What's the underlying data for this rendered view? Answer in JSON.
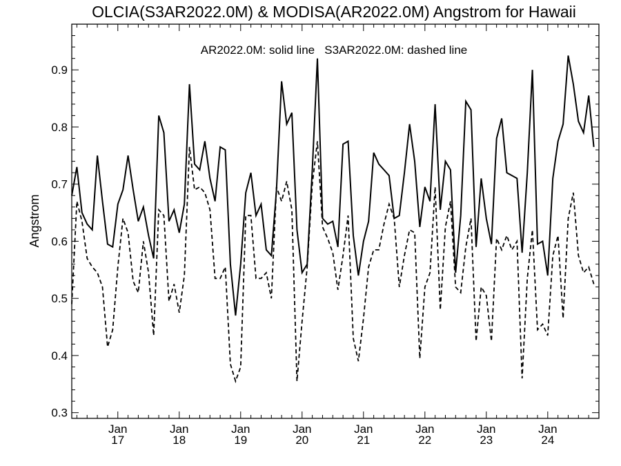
{
  "chart_data": {
    "type": "line",
    "title": "OLCIA(S3AR2022.0M) & MODISA(AR2022.0M)  Angstrom for Hawaii",
    "annotation": "AR2022.0M: solid line   S3AR2022.0M: dashed line",
    "ylabel": "Angstrom",
    "xlabel": "",
    "ylim": [
      0.29,
      0.98
    ],
    "xlim": [
      "2016-04",
      "2024-11"
    ],
    "y_ticks": [
      0.3,
      0.4,
      0.5,
      0.6,
      0.7,
      0.8,
      0.9
    ],
    "y_tick_labels": [
      "0.3",
      "0.4",
      "0.5",
      "0.6",
      "0.7",
      "0.8",
      "0.9"
    ],
    "x_ticks": [
      {
        "month": "Jan",
        "year": "17",
        "date": "2017-01"
      },
      {
        "month": "Jan",
        "year": "18",
        "date": "2018-01"
      },
      {
        "month": "Jan",
        "year": "19",
        "date": "2019-01"
      },
      {
        "month": "Jan",
        "year": "20",
        "date": "2020-01"
      },
      {
        "month": "Jan",
        "year": "21",
        "date": "2021-01"
      },
      {
        "month": "Jan",
        "year": "22",
        "date": "2022-01"
      },
      {
        "month": "Jan",
        "year": "23",
        "date": "2023-01"
      },
      {
        "month": "Jan",
        "year": "24",
        "date": "2024-01"
      }
    ],
    "grid": false,
    "series": [
      {
        "name": "AR2022.0M",
        "style": "solid",
        "color": "#000000",
        "points": [
          [
            "2016-04",
            0.68
          ],
          [
            "2016-05",
            0.73
          ],
          [
            "2016-06",
            0.65
          ],
          [
            "2016-07",
            0.63
          ],
          [
            "2016-08",
            0.62
          ],
          [
            "2016-09",
            0.75
          ],
          [
            "2016-10",
            0.67
          ],
          [
            "2016-11",
            0.595
          ],
          [
            "2016-12",
            0.59
          ],
          [
            "2017-01",
            0.665
          ],
          [
            "2017-02",
            0.69
          ],
          [
            "2017-03",
            0.75
          ],
          [
            "2017-04",
            0.69
          ],
          [
            "2017-05",
            0.635
          ],
          [
            "2017-06",
            0.66
          ],
          [
            "2017-07",
            0.61
          ],
          [
            "2017-08",
            0.57
          ],
          [
            "2017-09",
            0.82
          ],
          [
            "2017-10",
            0.79
          ],
          [
            "2017-11",
            0.635
          ],
          [
            "2017-12",
            0.655
          ],
          [
            "2018-01",
            0.615
          ],
          [
            "2018-02",
            0.665
          ],
          [
            "2018-03",
            0.875
          ],
          [
            "2018-04",
            0.735
          ],
          [
            "2018-05",
            0.725
          ],
          [
            "2018-06",
            0.775
          ],
          [
            "2018-07",
            0.71
          ],
          [
            "2018-08",
            0.67
          ],
          [
            "2018-09",
            0.765
          ],
          [
            "2018-10",
            0.76
          ],
          [
            "2018-11",
            0.56
          ],
          [
            "2018-12",
            0.47
          ],
          [
            "2019-01",
            0.56
          ],
          [
            "2019-02",
            0.685
          ],
          [
            "2019-03",
            0.72
          ],
          [
            "2019-04",
            0.645
          ],
          [
            "2019-05",
            0.665
          ],
          [
            "2019-06",
            0.585
          ],
          [
            "2019-07",
            0.575
          ],
          [
            "2019-08",
            0.69
          ],
          [
            "2019-09",
            0.88
          ],
          [
            "2019-10",
            0.805
          ],
          [
            "2019-11",
            0.825
          ],
          [
            "2019-12",
            0.62
          ],
          [
            "2020-01",
            0.545
          ],
          [
            "2020-02",
            0.56
          ],
          [
            "2020-03",
            0.725
          ],
          [
            "2020-04",
            0.92
          ],
          [
            "2020-05",
            0.64
          ],
          [
            "2020-06",
            0.63
          ],
          [
            "2020-07",
            0.635
          ],
          [
            "2020-08",
            0.59
          ],
          [
            "2020-09",
            0.77
          ],
          [
            "2020-10",
            0.775
          ],
          [
            "2020-11",
            0.61
          ],
          [
            "2020-12",
            0.54
          ],
          [
            "2021-01",
            0.6
          ],
          [
            "2021-02",
            0.635
          ],
          [
            "2021-03",
            0.755
          ],
          [
            "2021-04",
            0.735
          ],
          [
            "2021-05",
            0.725
          ],
          [
            "2021-06",
            0.715
          ],
          [
            "2021-07",
            0.64
          ],
          [
            "2021-08",
            0.645
          ],
          [
            "2021-09",
            0.72
          ],
          [
            "2021-10",
            0.805
          ],
          [
            "2021-11",
            0.74
          ],
          [
            "2021-12",
            0.625
          ],
          [
            "2022-01",
            0.695
          ],
          [
            "2022-02",
            0.67
          ],
          [
            "2022-03",
            0.84
          ],
          [
            "2022-04",
            0.655
          ],
          [
            "2022-05",
            0.74
          ],
          [
            "2022-06",
            0.725
          ],
          [
            "2022-07",
            0.545
          ],
          [
            "2022-08",
            0.645
          ],
          [
            "2022-09",
            0.845
          ],
          [
            "2022-10",
            0.83
          ],
          [
            "2022-11",
            0.59
          ],
          [
            "2022-12",
            0.71
          ],
          [
            "2023-01",
            0.64
          ],
          [
            "2023-02",
            0.595
          ],
          [
            "2023-03",
            0.78
          ],
          [
            "2023-04",
            0.815
          ],
          [
            "2023-05",
            0.72
          ],
          [
            "2023-06",
            0.715
          ],
          [
            "2023-07",
            0.71
          ],
          [
            "2023-08",
            0.58
          ],
          [
            "2023-09",
            0.72
          ],
          [
            "2023-10",
            0.9
          ],
          [
            "2023-11",
            0.595
          ],
          [
            "2023-12",
            0.6
          ],
          [
            "2024-01",
            0.54
          ],
          [
            "2024-02",
            0.71
          ],
          [
            "2024-03",
            0.775
          ],
          [
            "2024-04",
            0.805
          ],
          [
            "2024-05",
            0.925
          ],
          [
            "2024-06",
            0.875
          ],
          [
            "2024-07",
            0.81
          ],
          [
            "2024-08",
            0.79
          ],
          [
            "2024-09",
            0.855
          ],
          [
            "2024-10",
            0.765
          ]
        ]
      },
      {
        "name": "S3AR2022.0M",
        "style": "dashed",
        "color": "#000000",
        "points": [
          [
            "2016-04",
            0.49
          ],
          [
            "2016-05",
            0.67
          ],
          [
            "2016-06",
            0.635
          ],
          [
            "2016-07",
            0.57
          ],
          [
            "2016-08",
            0.555
          ],
          [
            "2016-09",
            0.545
          ],
          [
            "2016-10",
            0.52
          ],
          [
            "2016-11",
            0.415
          ],
          [
            "2016-12",
            0.445
          ],
          [
            "2017-01",
            0.555
          ],
          [
            "2017-02",
            0.64
          ],
          [
            "2017-03",
            0.615
          ],
          [
            "2017-04",
            0.53
          ],
          [
            "2017-05",
            0.51
          ],
          [
            "2017-06",
            0.6
          ],
          [
            "2017-07",
            0.545
          ],
          [
            "2017-08",
            0.435
          ],
          [
            "2017-09",
            0.655
          ],
          [
            "2017-10",
            0.645
          ],
          [
            "2017-11",
            0.495
          ],
          [
            "2017-12",
            0.525
          ],
          [
            "2018-01",
            0.475
          ],
          [
            "2018-02",
            0.54
          ],
          [
            "2018-03",
            0.765
          ],
          [
            "2018-04",
            0.69
          ],
          [
            "2018-05",
            0.695
          ],
          [
            "2018-06",
            0.685
          ],
          [
            "2018-07",
            0.655
          ],
          [
            "2018-08",
            0.535
          ],
          [
            "2018-09",
            0.535
          ],
          [
            "2018-10",
            0.555
          ],
          [
            "2018-11",
            0.385
          ],
          [
            "2018-12",
            0.355
          ],
          [
            "2019-01",
            0.38
          ],
          [
            "2019-02",
            0.645
          ],
          [
            "2019-03",
            0.645
          ],
          [
            "2019-04",
            0.535
          ],
          [
            "2019-05",
            0.535
          ],
          [
            "2019-06",
            0.545
          ],
          [
            "2019-07",
            0.5
          ],
          [
            "2019-08",
            0.695
          ],
          [
            "2019-09",
            0.67
          ],
          [
            "2019-10",
            0.705
          ],
          [
            "2019-11",
            0.655
          ],
          [
            "2019-12",
            0.355
          ],
          [
            "2020-01",
            0.46
          ],
          [
            "2020-02",
            0.555
          ],
          [
            "2020-03",
            0.7
          ],
          [
            "2020-04",
            0.775
          ],
          [
            "2020-05",
            0.625
          ],
          [
            "2020-06",
            0.605
          ],
          [
            "2020-07",
            0.58
          ],
          [
            "2020-08",
            0.515
          ],
          [
            "2020-09",
            0.575
          ],
          [
            "2020-10",
            0.645
          ],
          [
            "2020-11",
            0.43
          ],
          [
            "2020-12",
            0.39
          ],
          [
            "2021-01",
            0.465
          ],
          [
            "2021-02",
            0.555
          ],
          [
            "2021-03",
            0.585
          ],
          [
            "2021-04",
            0.585
          ],
          [
            "2021-05",
            0.63
          ],
          [
            "2021-06",
            0.665
          ],
          [
            "2021-07",
            0.64
          ],
          [
            "2021-08",
            0.52
          ],
          [
            "2021-09",
            0.575
          ],
          [
            "2021-10",
            0.62
          ],
          [
            "2021-11",
            0.615
          ],
          [
            "2021-12",
            0.395
          ],
          [
            "2022-01",
            0.52
          ],
          [
            "2022-02",
            0.545
          ],
          [
            "2022-03",
            0.695
          ],
          [
            "2022-04",
            0.48
          ],
          [
            "2022-05",
            0.625
          ],
          [
            "2022-06",
            0.67
          ],
          [
            "2022-07",
            0.52
          ],
          [
            "2022-08",
            0.51
          ],
          [
            "2022-09",
            0.59
          ],
          [
            "2022-10",
            0.64
          ],
          [
            "2022-11",
            0.425
          ],
          [
            "2022-12",
            0.52
          ],
          [
            "2023-01",
            0.505
          ],
          [
            "2023-02",
            0.425
          ],
          [
            "2023-03",
            0.605
          ],
          [
            "2023-04",
            0.585
          ],
          [
            "2023-05",
            0.61
          ],
          [
            "2023-06",
            0.585
          ],
          [
            "2023-07",
            0.6
          ],
          [
            "2023-08",
            0.36
          ],
          [
            "2023-09",
            0.535
          ],
          [
            "2023-10",
            0.62
          ],
          [
            "2023-11",
            0.445
          ],
          [
            "2023-12",
            0.455
          ],
          [
            "2024-01",
            0.435
          ],
          [
            "2024-02",
            0.575
          ],
          [
            "2024-03",
            0.61
          ],
          [
            "2024-04",
            0.465
          ],
          [
            "2024-05",
            0.64
          ],
          [
            "2024-06",
            0.685
          ],
          [
            "2024-07",
            0.575
          ],
          [
            "2024-08",
            0.545
          ],
          [
            "2024-09",
            0.555
          ],
          [
            "2024-10",
            0.525
          ]
        ]
      }
    ]
  }
}
